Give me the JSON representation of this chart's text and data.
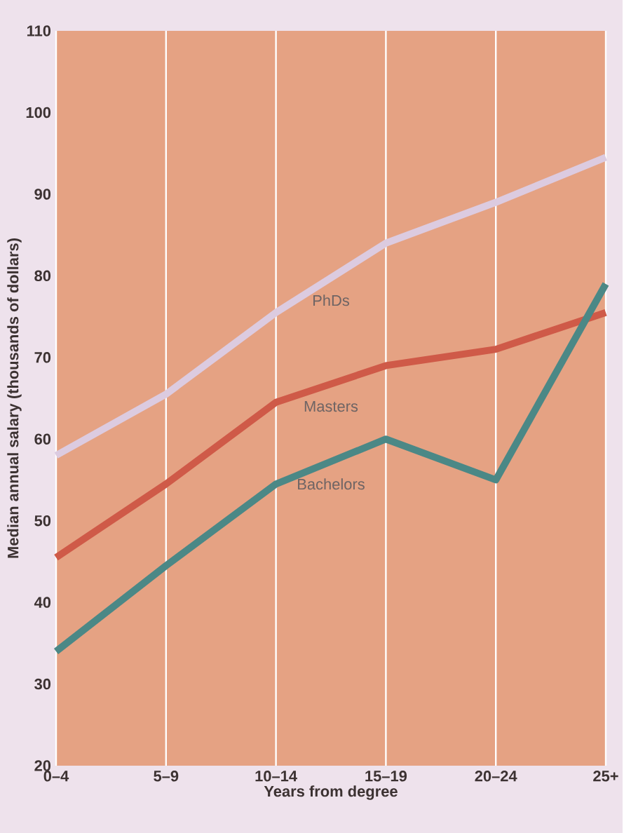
{
  "chart_data": {
    "type": "line",
    "xlabel": "Years from degree",
    "ylabel": "Median annual salary (thousands of dollars)",
    "categories": [
      "0–4",
      "5–9",
      "10–14",
      "15–19",
      "20–24",
      "25+"
    ],
    "series": [
      {
        "name": "PhDs",
        "color": "#dccbe0",
        "values": [
          58,
          65.5,
          75.5,
          84,
          89,
          94.5
        ]
      },
      {
        "name": "Masters",
        "color": "#cf5a48",
        "values": [
          45.5,
          54.5,
          64.5,
          69,
          71,
          75.5
        ]
      },
      {
        "name": "Bachelors",
        "color": "#4b8886",
        "values": [
          34,
          44.5,
          54.5,
          60,
          55,
          79
        ]
      }
    ],
    "ylim": [
      20,
      110
    ],
    "yticks": [
      20,
      30,
      40,
      50,
      60,
      70,
      80,
      90,
      100,
      110
    ],
    "grid": "x",
    "marker": "none",
    "line_style": "solid"
  }
}
